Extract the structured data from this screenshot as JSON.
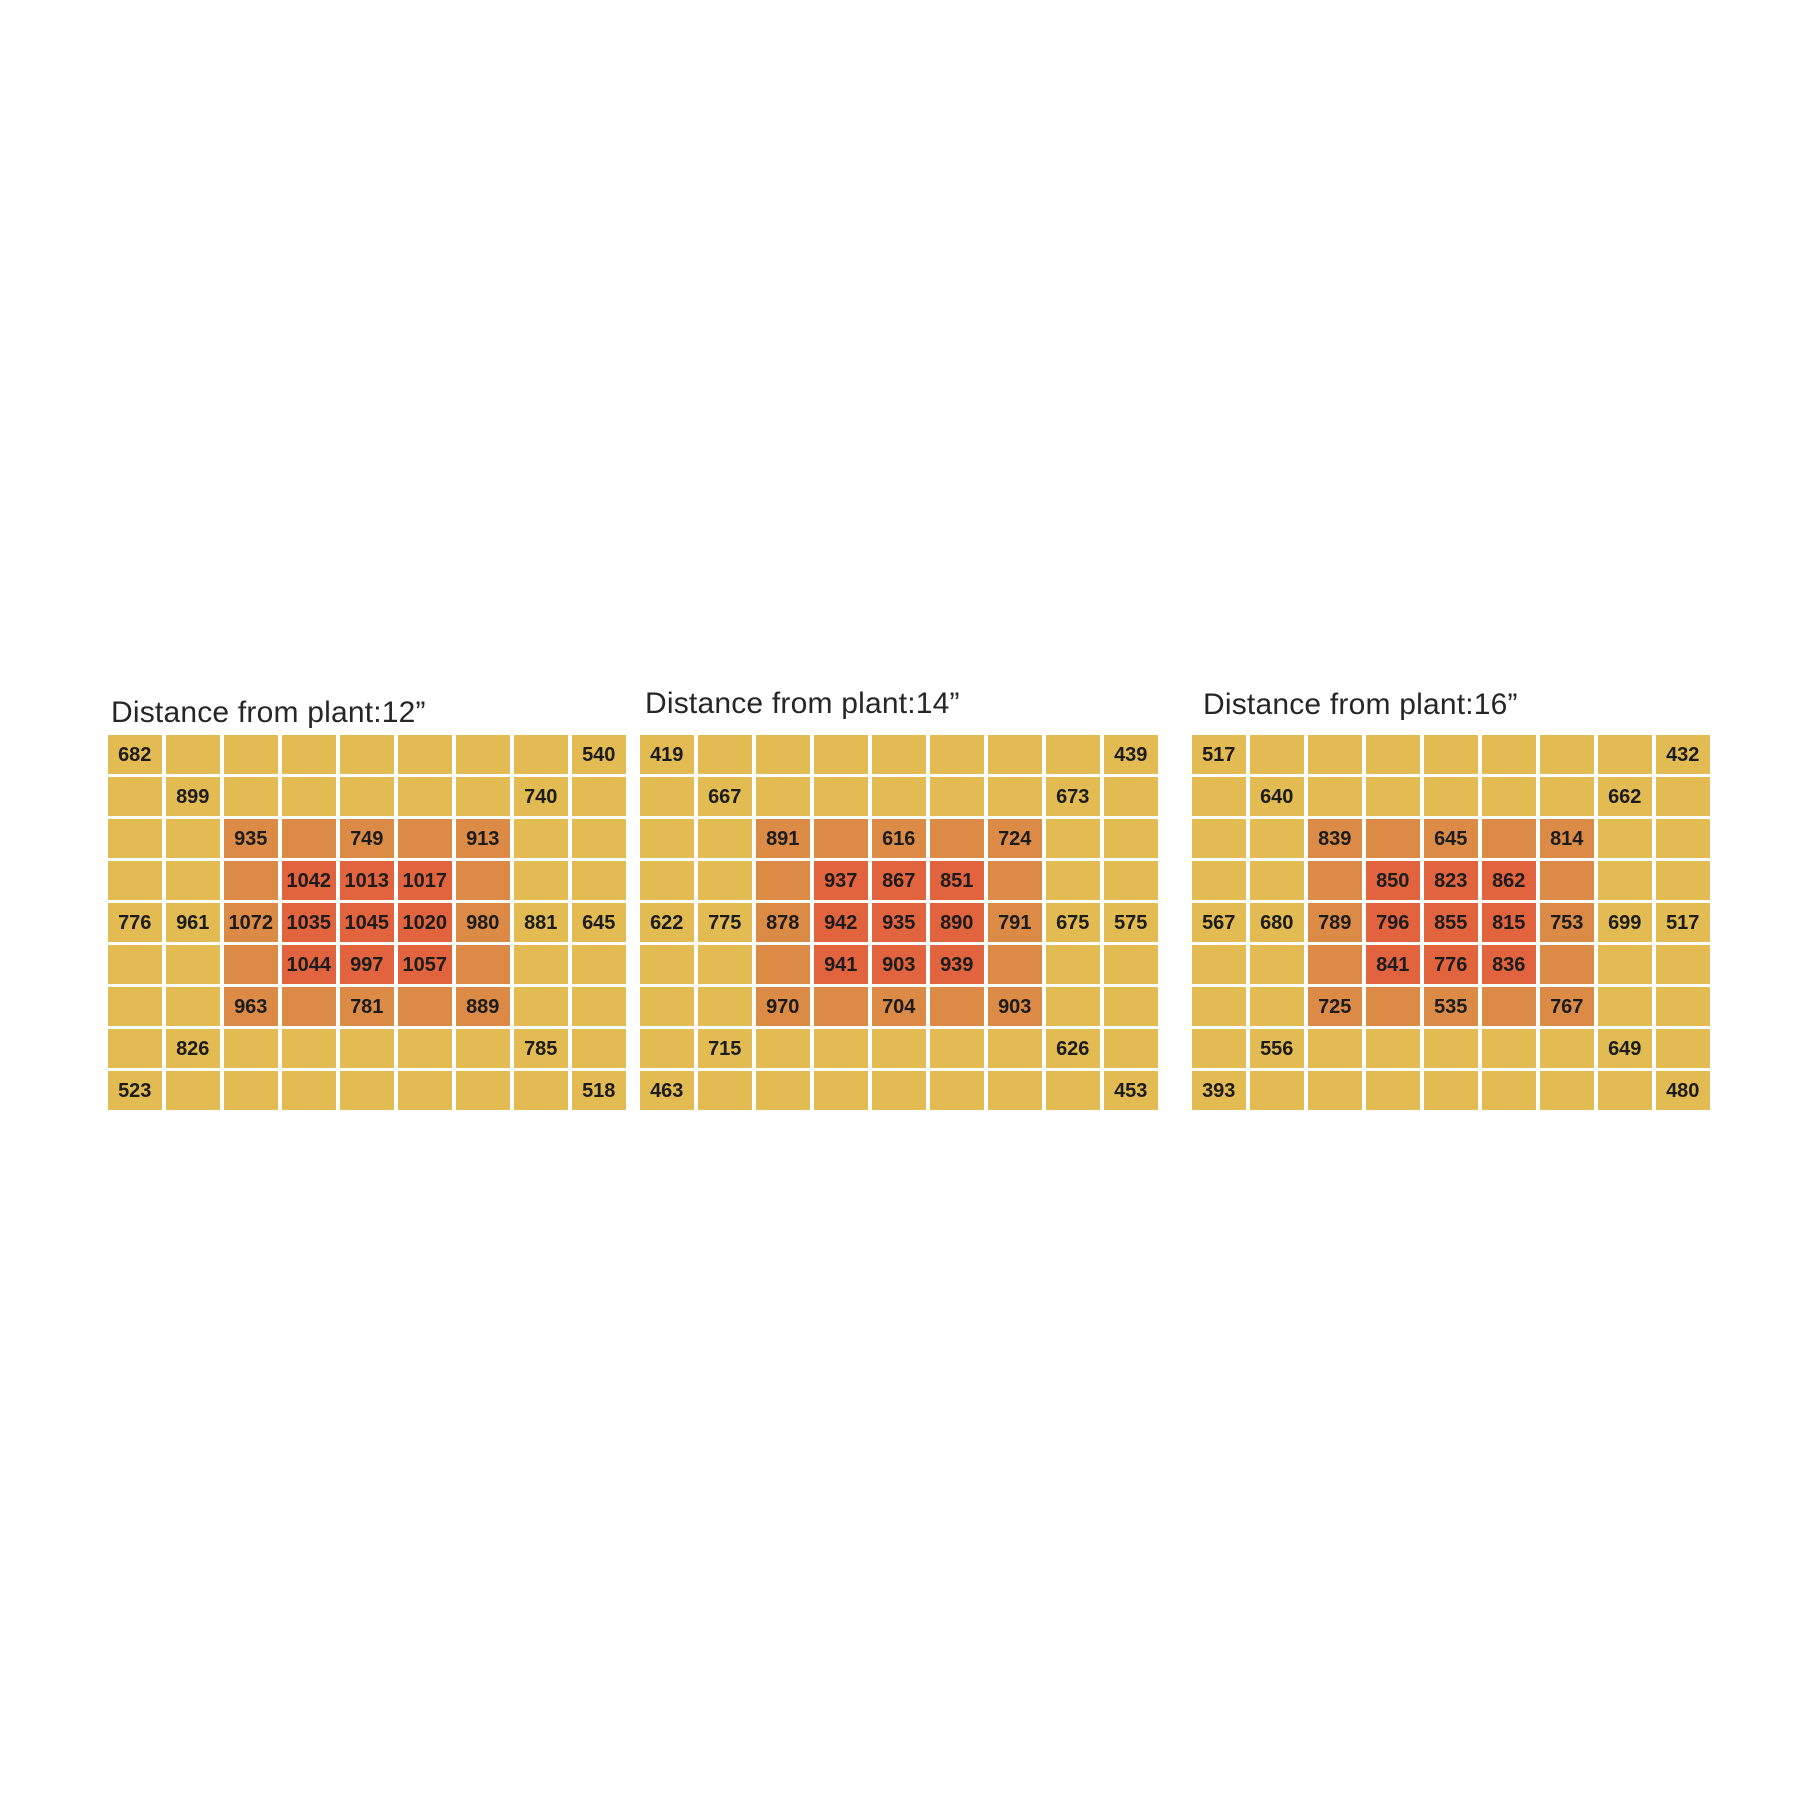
{
  "figure": {
    "background": "#ffffff",
    "panel_count": 3
  },
  "heat_colors": {
    "low": "#e3bb53",
    "mid": "#dc8b47",
    "high": "#e2643f",
    "gap": "#ffffff",
    "cell_text": "#1c1c1c",
    "title_text": "#262626"
  },
  "chart_data": [
    {
      "type": "heatmap",
      "title": "Distance from plant:12”",
      "rows": 9,
      "cols": 9,
      "values": [
        [
          682,
          null,
          null,
          null,
          null,
          null,
          null,
          null,
          540
        ],
        [
          null,
          899,
          null,
          null,
          null,
          null,
          null,
          740,
          null
        ],
        [
          null,
          null,
          935,
          null,
          749,
          null,
          913,
          null,
          null
        ],
        [
          null,
          null,
          null,
          1042,
          1013,
          1017,
          null,
          null,
          null
        ],
        [
          776,
          961,
          1072,
          1035,
          1045,
          1020,
          980,
          881,
          645
        ],
        [
          null,
          null,
          null,
          1044,
          997,
          1057,
          null,
          null,
          null
        ],
        [
          null,
          null,
          963,
          null,
          781,
          null,
          889,
          null,
          null
        ],
        [
          null,
          826,
          null,
          null,
          null,
          null,
          null,
          785,
          null
        ],
        [
          523,
          null,
          null,
          null,
          null,
          null,
          null,
          null,
          518
        ]
      ],
      "levels": [
        [
          0,
          0,
          0,
          0,
          0,
          0,
          0,
          0,
          0
        ],
        [
          0,
          0,
          0,
          0,
          0,
          0,
          0,
          0,
          0
        ],
        [
          0,
          0,
          1,
          1,
          1,
          1,
          1,
          0,
          0
        ],
        [
          0,
          0,
          1,
          2,
          2,
          2,
          1,
          0,
          0
        ],
        [
          0,
          0,
          1,
          2,
          2,
          2,
          1,
          0,
          0
        ],
        [
          0,
          0,
          1,
          2,
          2,
          2,
          1,
          0,
          0
        ],
        [
          0,
          0,
          1,
          1,
          1,
          1,
          1,
          0,
          0
        ],
        [
          0,
          0,
          0,
          0,
          0,
          0,
          0,
          0,
          0
        ],
        [
          0,
          0,
          0,
          0,
          0,
          0,
          0,
          0,
          0
        ]
      ]
    },
    {
      "type": "heatmap",
      "title": "Distance from plant:14”",
      "rows": 9,
      "cols": 9,
      "values": [
        [
          419,
          null,
          null,
          null,
          null,
          null,
          null,
          null,
          439
        ],
        [
          null,
          667,
          null,
          null,
          null,
          null,
          null,
          673,
          null
        ],
        [
          null,
          null,
          891,
          null,
          616,
          null,
          724,
          null,
          null
        ],
        [
          null,
          null,
          null,
          937,
          867,
          851,
          null,
          null,
          null
        ],
        [
          622,
          775,
          878,
          942,
          935,
          890,
          791,
          675,
          575
        ],
        [
          null,
          null,
          null,
          941,
          903,
          939,
          null,
          null,
          null
        ],
        [
          null,
          null,
          970,
          null,
          704,
          null,
          903,
          null,
          null
        ],
        [
          null,
          715,
          null,
          null,
          null,
          null,
          null,
          626,
          null
        ],
        [
          463,
          null,
          null,
          null,
          null,
          null,
          null,
          null,
          453
        ]
      ],
      "levels": [
        [
          0,
          0,
          0,
          0,
          0,
          0,
          0,
          0,
          0
        ],
        [
          0,
          0,
          0,
          0,
          0,
          0,
          0,
          0,
          0
        ],
        [
          0,
          0,
          1,
          1,
          1,
          1,
          1,
          0,
          0
        ],
        [
          0,
          0,
          1,
          2,
          2,
          2,
          1,
          0,
          0
        ],
        [
          0,
          0,
          1,
          2,
          2,
          2,
          1,
          0,
          0
        ],
        [
          0,
          0,
          1,
          2,
          2,
          2,
          1,
          0,
          0
        ],
        [
          0,
          0,
          1,
          1,
          1,
          1,
          1,
          0,
          0
        ],
        [
          0,
          0,
          0,
          0,
          0,
          0,
          0,
          0,
          0
        ],
        [
          0,
          0,
          0,
          0,
          0,
          0,
          0,
          0,
          0
        ]
      ]
    },
    {
      "type": "heatmap",
      "title": "Distance from plant:16”",
      "rows": 9,
      "cols": 9,
      "values": [
        [
          517,
          null,
          null,
          null,
          null,
          null,
          null,
          null,
          432
        ],
        [
          null,
          640,
          null,
          null,
          null,
          null,
          null,
          662,
          null
        ],
        [
          null,
          null,
          839,
          null,
          645,
          null,
          814,
          null,
          null
        ],
        [
          null,
          null,
          null,
          850,
          823,
          862,
          null,
          null,
          null
        ],
        [
          567,
          680,
          789,
          796,
          855,
          815,
          753,
          699,
          517
        ],
        [
          null,
          null,
          null,
          841,
          776,
          836,
          null,
          null,
          null
        ],
        [
          null,
          null,
          725,
          null,
          535,
          null,
          767,
          null,
          null
        ],
        [
          null,
          556,
          null,
          null,
          null,
          null,
          null,
          649,
          null
        ],
        [
          393,
          null,
          null,
          null,
          null,
          null,
          null,
          null,
          480
        ]
      ],
      "levels": [
        [
          0,
          0,
          0,
          0,
          0,
          0,
          0,
          0,
          0
        ],
        [
          0,
          0,
          0,
          0,
          0,
          0,
          0,
          0,
          0
        ],
        [
          0,
          0,
          1,
          1,
          1,
          1,
          1,
          0,
          0
        ],
        [
          0,
          0,
          1,
          2,
          2,
          2,
          1,
          0,
          0
        ],
        [
          0,
          0,
          1,
          2,
          2,
          2,
          1,
          0,
          0
        ],
        [
          0,
          0,
          1,
          2,
          2,
          2,
          1,
          0,
          0
        ],
        [
          0,
          0,
          1,
          1,
          1,
          1,
          1,
          0,
          0
        ],
        [
          0,
          0,
          0,
          0,
          0,
          0,
          0,
          0,
          0
        ],
        [
          0,
          0,
          0,
          0,
          0,
          0,
          0,
          0,
          0
        ]
      ]
    }
  ]
}
